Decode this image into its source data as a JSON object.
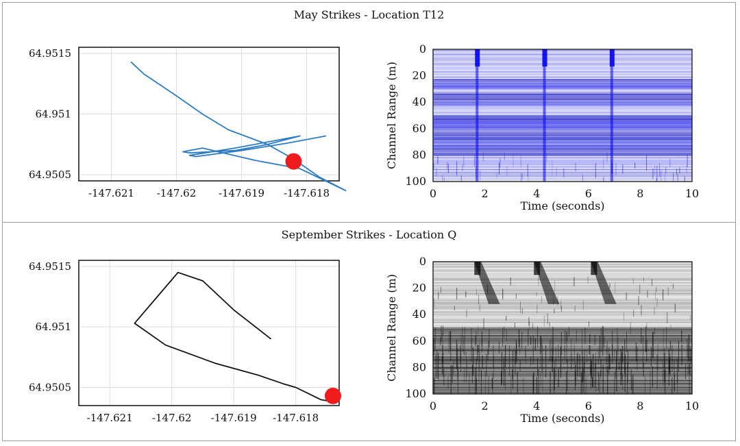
{
  "colors": {
    "may_track": "#2b7bc4",
    "sep_track": "#111111",
    "marker": "#ee1c1c",
    "may_heat": "#0000ee",
    "sep_heat": "#000000"
  },
  "panels": {
    "top": {
      "title": "May Strikes - Location T12"
    },
    "bottom": {
      "title": "September Strikes - Location Q"
    }
  },
  "chart_data": [
    {
      "id": "may-track",
      "type": "line",
      "title": "",
      "x_ticks": [
        "-147.621",
        "-147.62",
        "-147.619",
        "-147.618"
      ],
      "x_tick_values": [
        -147.621,
        -147.62,
        -147.619,
        -147.618
      ],
      "y_ticks": [
        "64.9515",
        "64.951",
        "64.9505"
      ],
      "y_tick_values": [
        64.9515,
        64.951,
        64.9505
      ],
      "xlim": [
        -147.6215,
        -147.6175
      ],
      "ylim": [
        64.95045,
        64.95155
      ],
      "grid": true,
      "series": [
        {
          "name": "route",
          "x": [
            -147.6207,
            -147.6205,
            -147.62,
            -147.6196,
            -147.6192,
            -147.6186,
            -147.6182,
            -147.6178,
            -147.6174,
            -147.6181,
            -147.6188,
            -147.6196,
            -147.6199,
            -147.6198,
            -147.6191,
            -147.6186,
            -147.6181,
            -147.6186,
            -147.6191,
            -147.6198,
            -147.6197,
            -147.619,
            -147.6183,
            -147.6177
          ],
          "y": [
            64.95143,
            64.95133,
            64.95115,
            64.951,
            64.95087,
            64.95075,
            64.95063,
            64.95048,
            64.95037,
            64.95055,
            64.95062,
            64.95072,
            64.95069,
            64.95068,
            64.9507,
            64.95075,
            64.95082,
            64.95077,
            64.95072,
            64.95066,
            64.95065,
            64.9507,
            64.95076,
            64.95082
          ]
        }
      ],
      "marker": {
        "x": -147.6182,
        "y": 64.95061
      }
    },
    {
      "id": "may-heatmap",
      "type": "heatmap",
      "xlabel": "Time (seconds)",
      "ylabel": "Channel Range (m)",
      "x_ticks": [
        "0",
        "2",
        "4",
        "6",
        "8",
        "10"
      ],
      "y_ticks": [
        "0",
        "20",
        "40",
        "60",
        "80",
        "100"
      ],
      "xlim": [
        0,
        10
      ],
      "ylim": [
        0,
        100
      ],
      "strike_times": [
        1.7,
        4.3,
        6.9
      ],
      "dense_bands": [
        [
          23,
          30
        ],
        [
          33,
          42
        ],
        [
          50,
          80
        ]
      ]
    },
    {
      "id": "sep-track",
      "type": "line",
      "title": "",
      "x_ticks": [
        "-147.621",
        "-147.62",
        "-147.619",
        "-147.618"
      ],
      "x_tick_values": [
        -147.621,
        -147.62,
        -147.619,
        -147.618
      ],
      "y_ticks": [
        "64.9515",
        "64.951",
        "64.9505"
      ],
      "y_tick_values": [
        64.9515,
        64.951,
        64.9505
      ],
      "xlim": [
        -147.6215,
        -147.6173
      ],
      "ylim": [
        64.95035,
        64.95155
      ],
      "grid": true,
      "series": [
        {
          "name": "route",
          "x": [
            -147.6184,
            -147.619,
            -147.6195,
            -147.6199,
            -147.6206,
            -147.6201,
            -147.6193,
            -147.6186,
            -147.6182,
            -147.618,
            -147.6178,
            -147.6176,
            -147.6175,
            -147.6174
          ],
          "y": [
            64.9509,
            64.95114,
            64.95138,
            64.95145,
            64.95103,
            64.95085,
            64.9507,
            64.9506,
            64.95053,
            64.9505,
            64.95045,
            64.9504,
            64.95039,
            64.95038
          ]
        }
      ],
      "marker": {
        "x": -147.6174,
        "y": 64.95043
      }
    },
    {
      "id": "sep-heatmap",
      "type": "heatmap",
      "xlabel": "Time (seconds)",
      "ylabel": "Channel Range (m)",
      "x_ticks": [
        "0",
        "2",
        "4",
        "6",
        "8",
        "10"
      ],
      "y_ticks": [
        "0",
        "20",
        "40",
        "60",
        "80",
        "100"
      ],
      "xlim": [
        0,
        10
      ],
      "ylim": [
        0,
        100
      ],
      "strike_times": [
        1.7,
        4.0,
        6.2
      ],
      "dense_bands": [
        [
          50,
          100
        ]
      ]
    }
  ]
}
